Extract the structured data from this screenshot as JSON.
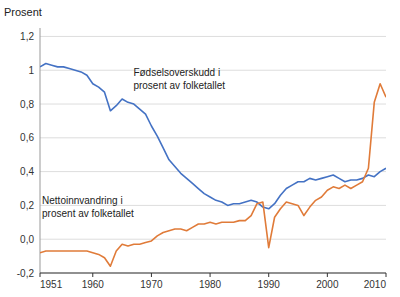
{
  "chart_data": {
    "type": "line",
    "y_label": "Prosent",
    "grid": true,
    "xlim": [
      1951,
      2010
    ],
    "ylim": [
      -0.2,
      1.25
    ],
    "xticks": [
      1951,
      1960,
      1970,
      1980,
      1990,
      2000,
      2010
    ],
    "yticks": [
      {
        "value": -0.2,
        "label": "-0,2"
      },
      {
        "value": 0.0,
        "label": "0,0"
      },
      {
        "value": 0.2,
        "label": "0,2"
      },
      {
        "value": 0.4,
        "label": "0,4"
      },
      {
        "value": 0.6,
        "label": "0,6"
      },
      {
        "value": 0.8,
        "label": "0,8"
      },
      1,
      {
        "value": 1.2,
        "label": "1,2"
      }
    ],
    "annotations": [
      "Fødselsoverskudd i\nprosent av folketallet",
      "Nettoinnvandring i\nprosent av folketallet"
    ],
    "x": [
      1951,
      1952,
      1953,
      1954,
      1955,
      1956,
      1957,
      1958,
      1959,
      1960,
      1961,
      1962,
      1963,
      1964,
      1965,
      1966,
      1967,
      1968,
      1969,
      1970,
      1971,
      1972,
      1973,
      1974,
      1975,
      1976,
      1977,
      1978,
      1979,
      1980,
      1981,
      1982,
      1983,
      1984,
      1985,
      1986,
      1987,
      1988,
      1989,
      1990,
      1991,
      1992,
      1993,
      1994,
      1995,
      1996,
      1997,
      1998,
      1999,
      2000,
      2001,
      2002,
      2003,
      2004,
      2005,
      2006,
      2007,
      2008,
      2009,
      2010
    ],
    "series": [
      {
        "color": "#4472C4",
        "values": [
          1.02,
          1.04,
          1.03,
          1.02,
          1.02,
          1.01,
          1.0,
          0.99,
          0.97,
          0.92,
          0.9,
          0.87,
          0.76,
          0.79,
          0.83,
          0.81,
          0.8,
          0.77,
          0.74,
          0.67,
          0.61,
          0.54,
          0.47,
          0.43,
          0.39,
          0.36,
          0.33,
          0.3,
          0.27,
          0.25,
          0.23,
          0.22,
          0.2,
          0.21,
          0.21,
          0.22,
          0.23,
          0.22,
          0.19,
          0.18,
          0.21,
          0.26,
          0.3,
          0.32,
          0.34,
          0.34,
          0.36,
          0.35,
          0.36,
          0.37,
          0.38,
          0.36,
          0.34,
          0.35,
          0.35,
          0.36,
          0.38,
          0.37,
          0.4,
          0.42
        ]
      },
      {
        "color": "#E07B39",
        "values": [
          -0.08,
          -0.07,
          -0.07,
          -0.07,
          -0.07,
          -0.07,
          -0.07,
          -0.07,
          -0.07,
          -0.08,
          -0.09,
          -0.11,
          -0.16,
          -0.07,
          -0.03,
          -0.04,
          -0.03,
          -0.03,
          -0.02,
          -0.01,
          0.02,
          0.04,
          0.05,
          0.06,
          0.06,
          0.05,
          0.07,
          0.09,
          0.09,
          0.1,
          0.09,
          0.1,
          0.1,
          0.1,
          0.11,
          0.11,
          0.14,
          0.21,
          0.22,
          -0.05,
          0.13,
          0.18,
          0.22,
          0.21,
          0.2,
          0.14,
          0.19,
          0.23,
          0.25,
          0.29,
          0.31,
          0.3,
          0.32,
          0.3,
          0.32,
          0.34,
          0.42,
          0.81,
          0.92,
          0.84
        ]
      }
    ]
  }
}
